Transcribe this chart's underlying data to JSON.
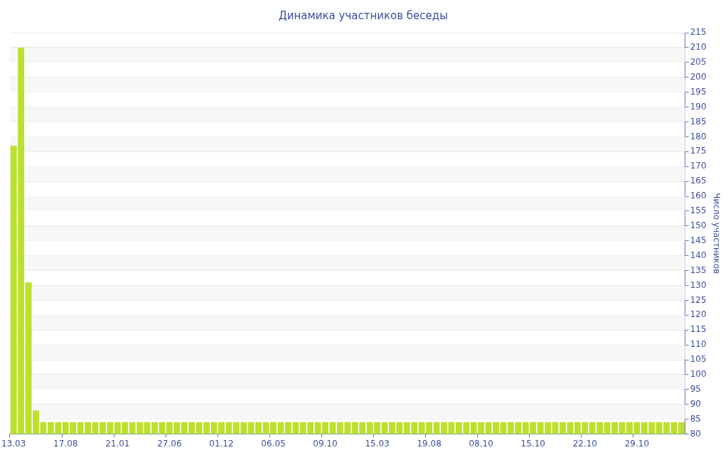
{
  "chart_data": {
    "type": "bar",
    "title": "Динамика участников беседы",
    "y2label": "Число участников",
    "categories": [
      "13.03",
      null,
      null,
      null,
      null,
      null,
      null,
      "17.08",
      null,
      null,
      null,
      null,
      null,
      null,
      "21.01",
      null,
      null,
      null,
      null,
      null,
      null,
      "27.06",
      null,
      null,
      null,
      null,
      null,
      null,
      "01.12",
      null,
      null,
      null,
      null,
      null,
      null,
      "06.05",
      null,
      null,
      null,
      null,
      null,
      null,
      "09.10",
      null,
      null,
      null,
      null,
      null,
      null,
      "15.03",
      null,
      null,
      null,
      null,
      null,
      null,
      "19.08",
      null,
      null,
      null,
      null,
      null,
      null,
      "08.10",
      null,
      null,
      null,
      null,
      null,
      null,
      "15.10",
      null,
      null,
      null,
      null,
      null,
      null,
      "22.10",
      null,
      null,
      null,
      null,
      null,
      null,
      "29.10",
      null,
      null,
      null,
      null,
      null,
      null
    ],
    "series": [
      {
        "color": "#bce02e",
        "axis": "y2",
        "values": [
          177,
          210,
          131,
          88,
          84,
          84,
          84,
          84,
          84,
          84,
          84,
          84,
          84,
          84,
          84,
          84,
          84,
          84,
          84,
          84,
          84,
          84,
          84,
          84,
          84,
          84,
          84,
          84,
          84,
          84,
          84,
          84,
          84,
          84,
          84,
          84,
          84,
          84,
          84,
          84,
          84,
          84,
          84,
          84,
          84,
          84,
          84,
          84,
          84,
          84,
          84,
          84,
          84,
          84,
          84,
          84,
          84,
          84,
          84,
          84,
          84,
          84,
          84,
          84,
          84,
          84,
          84,
          84,
          84,
          84,
          84,
          84,
          84,
          84,
          84,
          84,
          84,
          84,
          84,
          84,
          84,
          84,
          84,
          84,
          84,
          84,
          84,
          84,
          84,
          84,
          84
        ]
      }
    ],
    "y2lim": [
      80,
      215
    ],
    "y2ticks": [
      80,
      85,
      90,
      95,
      100,
      105,
      110,
      115,
      120,
      125,
      130,
      135,
      140,
      145,
      150,
      155,
      160,
      165,
      170,
      175,
      180,
      185,
      190,
      195,
      200,
      205,
      210,
      215
    ],
    "grid": "y",
    "legend": false
  }
}
